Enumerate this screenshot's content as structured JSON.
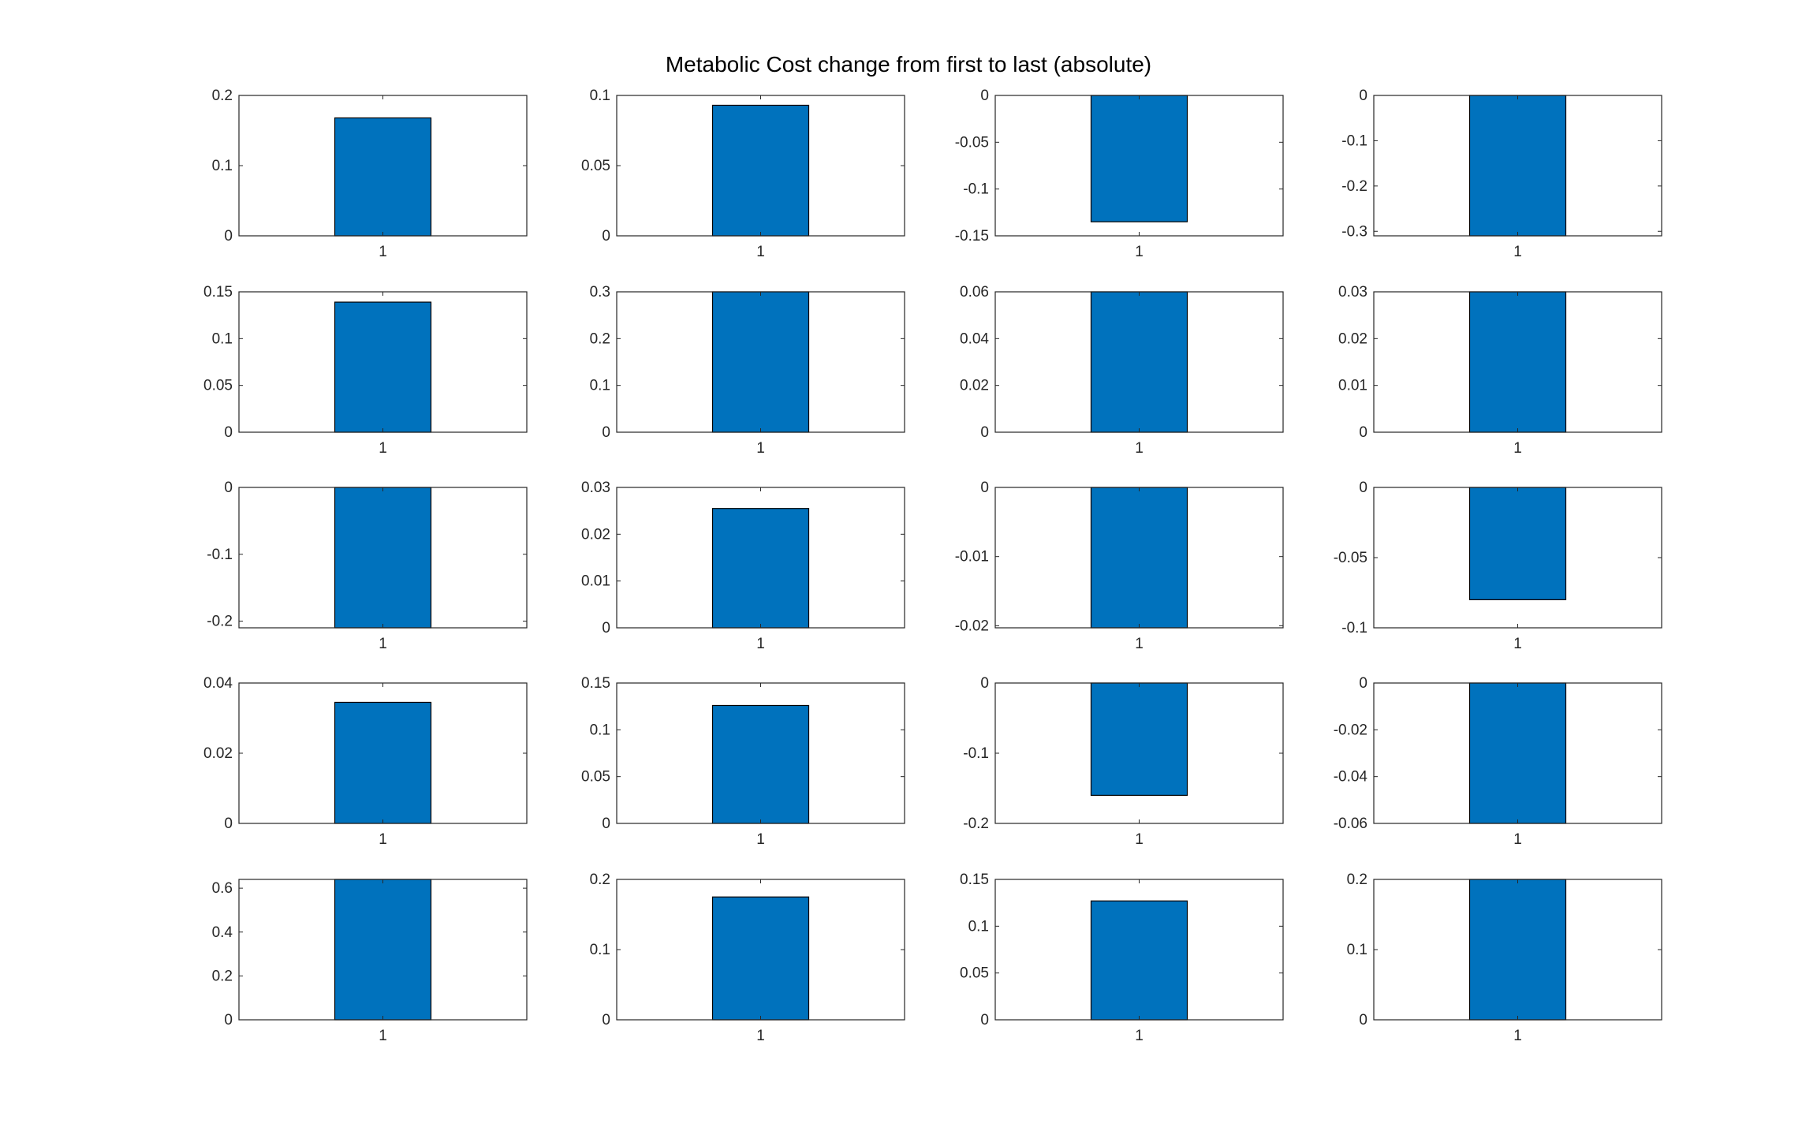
{
  "figure": {
    "title": "Metabolic Cost change from first to last (absolute)"
  },
  "style": {
    "bar_color": "#0072BD",
    "bar_edge_color": "#000000",
    "axes_color": "#262626",
    "background": "#ffffff"
  },
  "chart_data": [
    {
      "type": "bar",
      "categories": [
        "1"
      ],
      "values": [
        0.168
      ],
      "ylim": [
        0,
        0.2
      ],
      "yticks": [
        "0",
        "0.1",
        "0.2"
      ]
    },
    {
      "type": "bar",
      "categories": [
        "1"
      ],
      "values": [
        0.093
      ],
      "ylim": [
        0,
        0.1
      ],
      "yticks": [
        "0",
        "0.05",
        "0.1"
      ]
    },
    {
      "type": "bar",
      "categories": [
        "1"
      ],
      "values": [
        -0.135
      ],
      "ylim": [
        -0.15,
        0
      ],
      "yticks": [
        "-0.15",
        "-0.1",
        "-0.05",
        "0"
      ]
    },
    {
      "type": "bar",
      "categories": [
        "1"
      ],
      "values": [
        -0.31
      ],
      "ylim": [
        -0.31,
        0
      ],
      "yticks": [
        "-0.3",
        "-0.2",
        "-0.1",
        "0"
      ]
    },
    {
      "type": "bar",
      "categories": [
        "1"
      ],
      "values": [
        0.139
      ],
      "ylim": [
        0,
        0.15
      ],
      "yticks": [
        "0",
        "0.05",
        "0.1",
        "0.15"
      ]
    },
    {
      "type": "bar",
      "categories": [
        "1"
      ],
      "values": [
        0.3
      ],
      "ylim": [
        0,
        0.3
      ],
      "yticks": [
        "0",
        "0.1",
        "0.2",
        "0.3"
      ]
    },
    {
      "type": "bar",
      "categories": [
        "1"
      ],
      "values": [
        0.06
      ],
      "ylim": [
        0,
        0.06
      ],
      "yticks": [
        "0",
        "0.02",
        "0.04",
        "0.06"
      ]
    },
    {
      "type": "bar",
      "categories": [
        "1"
      ],
      "values": [
        0.03
      ],
      "ylim": [
        0,
        0.03
      ],
      "yticks": [
        "0",
        "0.01",
        "0.02",
        "0.03"
      ]
    },
    {
      "type": "bar",
      "categories": [
        "1"
      ],
      "values": [
        -0.21
      ],
      "ylim": [
        -0.21,
        0
      ],
      "yticks": [
        "-0.2",
        "-0.1",
        "0"
      ]
    },
    {
      "type": "bar",
      "categories": [
        "1"
      ],
      "values": [
        0.0255
      ],
      "ylim": [
        0,
        0.03
      ],
      "yticks": [
        "0",
        "0.01",
        "0.02",
        "0.03"
      ]
    },
    {
      "type": "bar",
      "categories": [
        "1"
      ],
      "values": [
        -0.0203
      ],
      "ylim": [
        -0.0203,
        0
      ],
      "yticks": [
        "-0.02",
        "-0.01",
        "0"
      ]
    },
    {
      "type": "bar",
      "categories": [
        "1"
      ],
      "values": [
        -0.08
      ],
      "ylim": [
        -0.1,
        0
      ],
      "yticks": [
        "-0.1",
        "-0.05",
        "0"
      ]
    },
    {
      "type": "bar",
      "categories": [
        "1"
      ],
      "values": [
        0.0345
      ],
      "ylim": [
        0,
        0.04
      ],
      "yticks": [
        "0",
        "0.02",
        "0.04"
      ]
    },
    {
      "type": "bar",
      "categories": [
        "1"
      ],
      "values": [
        0.126
      ],
      "ylim": [
        0,
        0.15
      ],
      "yticks": [
        "0",
        "0.05",
        "0.1",
        "0.15"
      ]
    },
    {
      "type": "bar",
      "categories": [
        "1"
      ],
      "values": [
        -0.16
      ],
      "ylim": [
        -0.2,
        0
      ],
      "yticks": [
        "-0.2",
        "-0.1",
        "0"
      ]
    },
    {
      "type": "bar",
      "categories": [
        "1"
      ],
      "values": [
        -0.06
      ],
      "ylim": [
        -0.06,
        0
      ],
      "yticks": [
        "-0.06",
        "-0.04",
        "-0.02",
        "0"
      ]
    },
    {
      "type": "bar",
      "categories": [
        "1"
      ],
      "values": [
        0.64
      ],
      "ylim": [
        0,
        0.64
      ],
      "yticks": [
        "0",
        "0.2",
        "0.4",
        "0.6"
      ]
    },
    {
      "type": "bar",
      "categories": [
        "1"
      ],
      "values": [
        0.175
      ],
      "ylim": [
        0,
        0.2
      ],
      "yticks": [
        "0",
        "0.1",
        "0.2"
      ]
    },
    {
      "type": "bar",
      "categories": [
        "1"
      ],
      "values": [
        0.127
      ],
      "ylim": [
        0,
        0.15
      ],
      "yticks": [
        "0",
        "0.05",
        "0.1",
        "0.15"
      ]
    },
    {
      "type": "bar",
      "categories": [
        "1"
      ],
      "values": [
        0.2
      ],
      "ylim": [
        0,
        0.2
      ],
      "yticks": [
        "0",
        "0.1",
        "0.2"
      ]
    }
  ]
}
